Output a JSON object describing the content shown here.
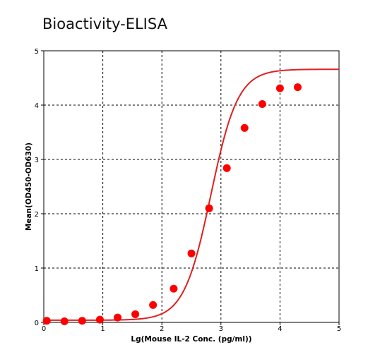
{
  "title": "Bioactivity-ELISA",
  "chart_data": {
    "type": "scatter",
    "title": "Bioactivity-ELISA",
    "xlabel": "Lg(Mouse IL-2 Conc. (pg/ml))",
    "ylabel": "Mean(OD450-OD630)",
    "xlim": [
      0,
      5
    ],
    "ylim": [
      0,
      5
    ],
    "x_ticks": [
      "0",
      "1",
      "2",
      "3",
      "4",
      "5"
    ],
    "y_ticks": [
      "0",
      "1",
      "2",
      "3",
      "4",
      "5"
    ],
    "grid": true,
    "grid_style": "dashed",
    "legend": "none",
    "marker_color": "#ff0000",
    "curve_color": "#e02020",
    "points": [
      {
        "x": 0.05,
        "y": 0.03
      },
      {
        "x": 0.35,
        "y": 0.02
      },
      {
        "x": 0.65,
        "y": 0.03
      },
      {
        "x": 0.95,
        "y": 0.05
      },
      {
        "x": 1.25,
        "y": 0.09
      },
      {
        "x": 1.55,
        "y": 0.15
      },
      {
        "x": 1.85,
        "y": 0.32
      },
      {
        "x": 2.2,
        "y": 0.62
      },
      {
        "x": 2.5,
        "y": 1.27
      },
      {
        "x": 2.8,
        "y": 2.1
      },
      {
        "x": 3.1,
        "y": 2.84
      },
      {
        "x": 3.4,
        "y": 3.58
      },
      {
        "x": 3.7,
        "y": 4.02
      },
      {
        "x": 4.0,
        "y": 4.31
      },
      {
        "x": 4.3,
        "y": 4.33
      }
    ],
    "fit_curve": {
      "model": "4PL",
      "bottom": 0.04,
      "top": 4.66,
      "ec50_log": 2.83,
      "hill": 1.9,
      "x_range": [
        0.05,
        5.0
      ]
    }
  }
}
